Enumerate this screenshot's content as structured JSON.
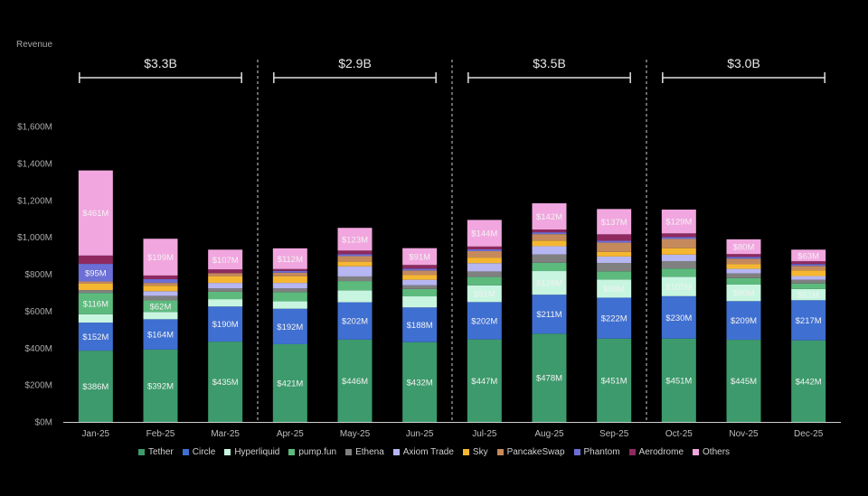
{
  "chart_data": {
    "type": "bar",
    "stacked": true,
    "ylabel": "Revenue",
    "ylim": [
      0,
      1600
    ],
    "yticks": [
      "$0M",
      "$200M",
      "$400M",
      "$600M",
      "$800M",
      "$1,000M",
      "$1,200M",
      "$1,400M",
      "$1,600M"
    ],
    "categories": [
      "Jan-25",
      "Feb-25",
      "Mar-25",
      "Apr-25",
      "May-25",
      "Jun-25",
      "Jul-25",
      "Aug-25",
      "Sep-25",
      "Oct-25",
      "Nov-25",
      "Dec-25"
    ],
    "quarters": [
      {
        "label": "$3.3B",
        "start": 0,
        "end": 2
      },
      {
        "label": "$2.9B",
        "start": 3,
        "end": 5
      },
      {
        "label": "$3.5B",
        "start": 6,
        "end": 8
      },
      {
        "label": "$3.0B",
        "start": 9,
        "end": 11
      }
    ],
    "series": [
      {
        "name": "Tether",
        "color": "#3d9a6c",
        "values": [
          386,
          392,
          435,
          421,
          446,
          432,
          447,
          478,
          451,
          451,
          445,
          442
        ],
        "labels": [
          "$386M",
          "$392M",
          "$435M",
          "$421M",
          "$446M",
          "$432M",
          "$447M",
          "$478M",
          "$451M",
          "$451M",
          "$445M",
          "$442M"
        ]
      },
      {
        "name": "Circle",
        "color": "#3f6fd1",
        "values": [
          152,
          164,
          190,
          192,
          202,
          188,
          202,
          211,
          222,
          230,
          209,
          217
        ],
        "labels": [
          "$152M",
          "$164M",
          "$190M",
          "$192M",
          "$202M",
          "$188M",
          "$202M",
          "$211M",
          "$222M",
          "$230M",
          "$209M",
          "$217M"
        ]
      },
      {
        "name": "Hyperliquid",
        "color": "#c7f5e0",
        "values": [
          45,
          40,
          40,
          40,
          65,
          60,
          91,
          128,
          98,
          105,
          90,
          61
        ],
        "labels": [
          "",
          "",
          "",
          "",
          "",
          "",
          "$91M",
          "$128M",
          "$98M",
          "$105M",
          "$90M",
          "$61M"
        ]
      },
      {
        "name": "pump.fun",
        "color": "#5cba7d",
        "values": [
          116,
          62,
          40,
          50,
          50,
          40,
          45,
          45,
          45,
          45,
          35,
          30
        ],
        "labels": [
          "$116M",
          "$62M",
          "",
          "",
          "",
          "",
          "",
          "",
          "",
          "",
          "",
          ""
        ]
      },
      {
        "name": "Ethena",
        "color": "#808080",
        "values": [
          15,
          25,
          18,
          20,
          25,
          20,
          30,
          45,
          45,
          40,
          25,
          20
        ],
        "labels": [
          "",
          "",
          "",
          "",
          "",
          "",
          "",
          "",
          "",
          "",
          "",
          ""
        ]
      },
      {
        "name": "Axiom Trade",
        "color": "#b6b6f2",
        "values": [
          0,
          25,
          30,
          30,
          55,
          30,
          45,
          45,
          35,
          35,
          25,
          20
        ],
        "labels": [
          "",
          "",
          "",
          "",
          "",
          "",
          "",
          "",
          "",
          "",
          "",
          ""
        ]
      },
      {
        "name": "Sky",
        "color": "#f5b731",
        "values": [
          35,
          30,
          35,
          35,
          25,
          25,
          30,
          30,
          25,
          35,
          25,
          30
        ],
        "labels": [
          "",
          "",
          "",
          "",
          "",
          "",
          "",
          "",
          "",
          "",
          "",
          ""
        ]
      },
      {
        "name": "PancakeSwap",
        "color": "#c58a5c",
        "values": [
          12,
          15,
          18,
          20,
          30,
          25,
          35,
          35,
          50,
          50,
          30,
          25
        ],
        "labels": [
          "",
          "",
          "",
          "",
          "",
          "",
          "",
          "",
          "",
          "",
          "",
          ""
        ]
      },
      {
        "name": "Phantom",
        "color": "#6b6fd6",
        "values": [
          95,
          20,
          0,
          10,
          10,
          10,
          10,
          10,
          10,
          10,
          10,
          10
        ],
        "labels": [
          "$95M",
          "",
          "",
          "",
          "",
          "",
          "",
          "",
          "",
          "",
          "",
          ""
        ]
      },
      {
        "name": "Aerodrome",
        "color": "#8e2a60",
        "values": [
          45,
          20,
          20,
          10,
          20,
          20,
          15,
          15,
          35,
          20,
          15,
          15
        ],
        "labels": [
          "",
          "",
          "",
          "",
          "",
          "",
          "",
          "",
          "",
          "",
          "",
          ""
        ]
      },
      {
        "name": "Others",
        "color": "#f1a6df",
        "values": [
          461,
          199,
          107,
          112,
          123,
          91,
          144,
          142,
          137,
          129,
          80,
          63
        ],
        "labels": [
          "$461M",
          "$199M",
          "$107M",
          "$112M",
          "$123M",
          "$91M",
          "$144M",
          "$142M",
          "$137M",
          "$129M",
          "$80M",
          "$63M"
        ]
      }
    ]
  }
}
